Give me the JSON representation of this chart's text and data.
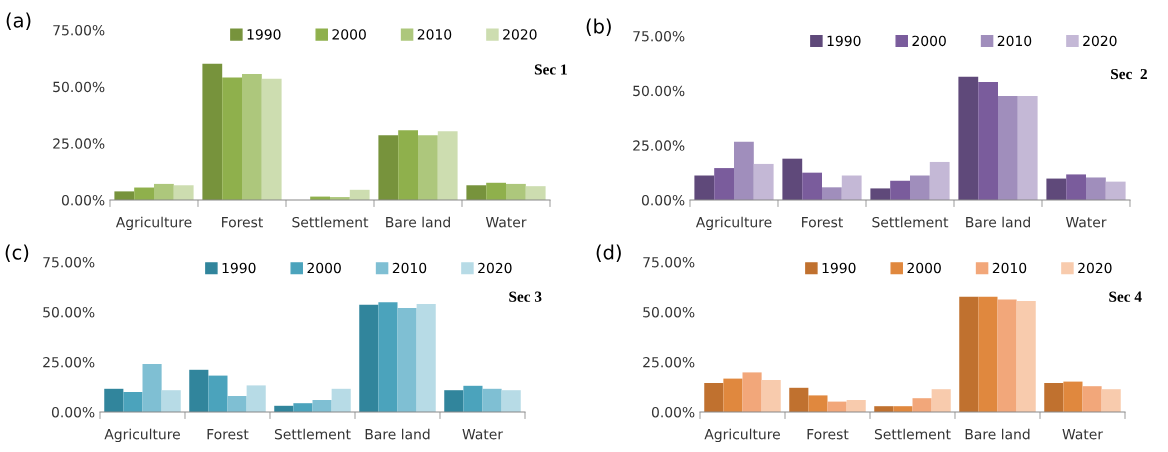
{
  "chart_data": [
    {
      "type": "bar",
      "title": "(a)",
      "annotations": [
        "Sec 1"
      ],
      "categories": [
        "Agriculture",
        "Forest",
        "Settlement",
        "Bare land",
        "Water"
      ],
      "ylim": [
        0,
        75
      ],
      "yticks": [
        {
          "value": 0,
          "label": "0.00%"
        },
        {
          "value": 25,
          "label": "25.00%"
        },
        {
          "value": 50,
          "label": "50.00%"
        },
        {
          "value": 75,
          "label": "75.00%"
        }
      ],
      "legend": "top right",
      "series": [
        {
          "name": "1990",
          "color": "#77933c",
          "values": [
            3.8,
            60.1,
            0,
            28.6,
            6.5
          ]
        },
        {
          "name": "2000",
          "color": "#8fb04c",
          "values": [
            5.5,
            54,
            1.5,
            30.8,
            7.6
          ]
        },
        {
          "name": "2010",
          "color": "#adc77c",
          "values": [
            7.1,
            55.6,
            1.3,
            28.6,
            7.1
          ]
        },
        {
          "name": "2020",
          "color": "#cdddb0",
          "values": [
            6.5,
            53.5,
            4.5,
            30.3,
            6.1
          ]
        }
      ]
    },
    {
      "type": "bar",
      "title": "(b)",
      "annotations": [
        "Sec  2"
      ],
      "categories": [
        "Agriculture",
        "Forest",
        "Settlement",
        "Bare land",
        "Water"
      ],
      "ylim": [
        0,
        75
      ],
      "yticks": [
        {
          "value": 0,
          "label": "0.00%"
        },
        {
          "value": 25,
          "label": "25.00%"
        },
        {
          "value": 50,
          "label": "50.00%"
        },
        {
          "value": 75,
          "label": "75.00%"
        }
      ],
      "legend": "top right",
      "series": [
        {
          "name": "1990",
          "color": "#5f497a",
          "values": [
            11.2,
            18.9,
            5.3,
            56.4,
            9.8
          ]
        },
        {
          "name": "2000",
          "color": "#7a5c9c",
          "values": [
            14.6,
            12.5,
            8.8,
            54,
            11.7
          ]
        },
        {
          "name": "2010",
          "color": "#a08ebc",
          "values": [
            26.6,
            5.8,
            11.2,
            47.6,
            10.3
          ]
        },
        {
          "name": "2020",
          "color": "#c4b8d6",
          "values": [
            16.5,
            11.2,
            17.4,
            47.6,
            8.4
          ]
        }
      ]
    },
    {
      "type": "bar",
      "title": "(c)",
      "annotations": [
        "Sec 3"
      ],
      "categories": [
        "Agriculture",
        "Forest",
        "Settlement",
        "Bare land",
        "Water"
      ],
      "ylim": [
        0,
        75
      ],
      "yticks": [
        {
          "value": 0,
          "label": "0.00%"
        },
        {
          "value": 25,
          "label": "25.00%"
        },
        {
          "value": 50,
          "label": "50.00%"
        },
        {
          "value": 75,
          "label": "75.00%"
        }
      ],
      "legend": "top right",
      "series": [
        {
          "name": "1990",
          "color": "#31859c",
          "values": [
            11.6,
            21.1,
            3.1,
            53.6,
            10.9
          ]
        },
        {
          "name": "2000",
          "color": "#4ba3bc",
          "values": [
            10,
            18.2,
            4.4,
            54.9,
            13.1
          ]
        },
        {
          "name": "2010",
          "color": "#7fbfd3",
          "values": [
            24,
            8,
            6,
            52,
            11.6
          ]
        },
        {
          "name": "2020",
          "color": "#b7dbe6",
          "values": [
            10.9,
            13.3,
            11.6,
            54,
            10.9
          ]
        }
      ]
    },
    {
      "type": "bar",
      "title": "(d)",
      "annotations": [
        "Sec 4"
      ],
      "categories": [
        "Agriculture",
        "Forest",
        "Settlement",
        "Bare land",
        "Water"
      ],
      "ylim": [
        0,
        75
      ],
      "yticks": [
        {
          "value": 0,
          "label": "0.00%"
        },
        {
          "value": 25,
          "label": "25.00%"
        },
        {
          "value": 50,
          "label": "50.00%"
        },
        {
          "value": 75,
          "label": "75.00%"
        }
      ],
      "legend": "top right",
      "series": [
        {
          "name": "1990",
          "color": "#c0712f",
          "values": [
            14.5,
            12.1,
            2.9,
            57.6,
            14.5
          ]
        },
        {
          "name": "2000",
          "color": "#e0883e",
          "values": [
            16.7,
            8.3,
            2.9,
            57.6,
            15.2
          ]
        },
        {
          "name": "2010",
          "color": "#f2a77a",
          "values": [
            19.8,
            5.2,
            6.9,
            56.2,
            12.9
          ]
        },
        {
          "name": "2020",
          "color": "#f8cbad",
          "values": [
            16,
            6,
            11.4,
            55.5,
            11.4
          ]
        }
      ]
    }
  ]
}
